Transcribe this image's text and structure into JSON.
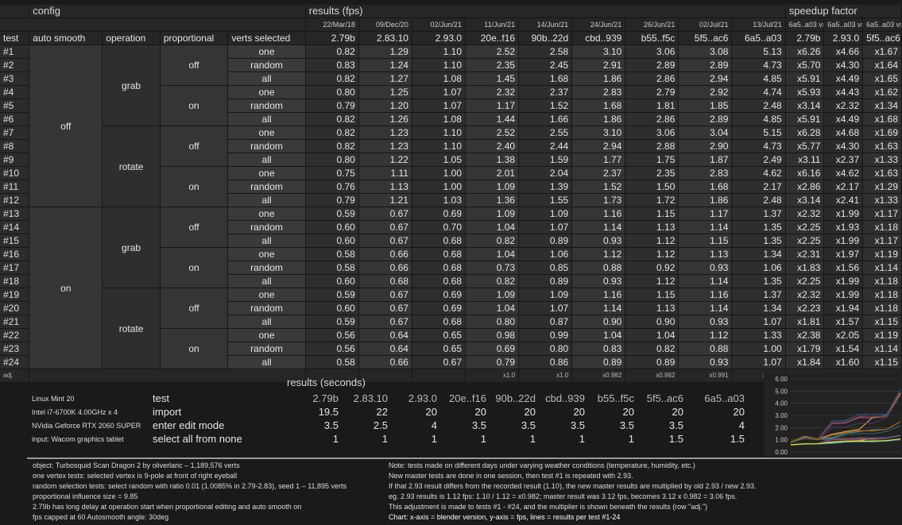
{
  "headers": {
    "config": "config",
    "results_fps": "results (fps)",
    "speedup_factor": "speedup factor",
    "col_test": "test",
    "col_auto_smooth": "auto smooth",
    "col_operation": "operation",
    "col_proportional": "proportional",
    "col_verts_selected": "verts selected",
    "dates": [
      "22/Mar/18",
      "09/Dec/20",
      "02/Jun/21",
      "11/Jun/21",
      "14/Jun/21",
      "24/Jun/21",
      "26/Jun/21",
      "02/Jul/21",
      "13/Jul/21"
    ],
    "versions": [
      "2.79b",
      "2.83.10",
      "2.93.0",
      "20e..f16",
      "90b..22d",
      "cbd..939",
      "b55..f5c",
      "5f5..ac6",
      "6a5..a03"
    ],
    "speedup_top": [
      "6a5..a03 vs",
      "6a5..a03 vs",
      "6a5..a03 vs"
    ],
    "speedup_versions": [
      "2.79b",
      "2.93.0",
      "5f5..ac6"
    ]
  },
  "groups": {
    "auto_smooth": [
      "off",
      "on"
    ],
    "operation": [
      "grab",
      "rotate",
      "grab",
      "rotate"
    ],
    "proportional": [
      "off",
      "on",
      "off",
      "on",
      "off",
      "on",
      "off",
      "on"
    ]
  },
  "rows": [
    {
      "id": "#1",
      "verts": "one",
      "fps": [
        "0.82",
        "1.29",
        "1.10",
        "2.52",
        "2.58",
        "3.10",
        "3.06",
        "3.08",
        "5.13"
      ],
      "spd": [
        "x6.26",
        "x4.66",
        "x1.67"
      ]
    },
    {
      "id": "#2",
      "verts": "random",
      "fps": [
        "0.83",
        "1.24",
        "1.10",
        "2.35",
        "2.45",
        "2.91",
        "2.89",
        "2.89",
        "4.73"
      ],
      "spd": [
        "x5.70",
        "x4.30",
        "x1.64"
      ]
    },
    {
      "id": "#3",
      "verts": "all",
      "fps": [
        "0.82",
        "1.27",
        "1.08",
        "1.45",
        "1.68",
        "1.86",
        "2.86",
        "2.94",
        "4.85"
      ],
      "spd": [
        "x5.91",
        "x4.49",
        "x1.65"
      ]
    },
    {
      "id": "#4",
      "verts": "one",
      "fps": [
        "0.80",
        "1.25",
        "1.07",
        "2.32",
        "2.37",
        "2.83",
        "2.79",
        "2.92",
        "4.74"
      ],
      "spd": [
        "x5.93",
        "x4.43",
        "x1.62"
      ]
    },
    {
      "id": "#5",
      "verts": "random",
      "fps": [
        "0.79",
        "1.20",
        "1.07",
        "1.17",
        "1.52",
        "1.68",
        "1.81",
        "1.85",
        "2.48"
      ],
      "spd": [
        "x3.14",
        "x2.32",
        "x1.34"
      ]
    },
    {
      "id": "#6",
      "verts": "all",
      "fps": [
        "0.82",
        "1.26",
        "1.08",
        "1.44",
        "1.66",
        "1.86",
        "2.86",
        "2.89",
        "4.85"
      ],
      "spd": [
        "x5.91",
        "x4.49",
        "x1.68"
      ]
    },
    {
      "id": "#7",
      "verts": "one",
      "fps": [
        "0.82",
        "1.23",
        "1.10",
        "2.52",
        "2.55",
        "3.10",
        "3.06",
        "3.04",
        "5.15"
      ],
      "spd": [
        "x6.28",
        "x4.68",
        "x1.69"
      ]
    },
    {
      "id": "#8",
      "verts": "random",
      "fps": [
        "0.82",
        "1.23",
        "1.10",
        "2.40",
        "2.44",
        "2.94",
        "2.88",
        "2.90",
        "4.73"
      ],
      "spd": [
        "x5.77",
        "x4.30",
        "x1.63"
      ]
    },
    {
      "id": "#9",
      "verts": "all",
      "fps": [
        "0.80",
        "1.22",
        "1.05",
        "1.38",
        "1.59",
        "1.77",
        "1.75",
        "1.87",
        "2.49"
      ],
      "spd": [
        "x3.11",
        "x2.37",
        "x1.33"
      ]
    },
    {
      "id": "#10",
      "verts": "one",
      "fps": [
        "0.75",
        "1.11",
        "1.00",
        "2.01",
        "2.04",
        "2.37",
        "2.35",
        "2.83",
        "4.62"
      ],
      "spd": [
        "x6.16",
        "x4.62",
        "x1.63"
      ]
    },
    {
      "id": "#11",
      "verts": "random",
      "fps": [
        "0.76",
        "1.13",
        "1.00",
        "1.09",
        "1.39",
        "1.52",
        "1.50",
        "1.68",
        "2.17"
      ],
      "spd": [
        "x2.86",
        "x2.17",
        "x1.29"
      ]
    },
    {
      "id": "#12",
      "verts": "all",
      "fps": [
        "0.79",
        "1.21",
        "1.03",
        "1.36",
        "1.55",
        "1.73",
        "1.72",
        "1.86",
        "2.48"
      ],
      "spd": [
        "x3.14",
        "x2.41",
        "x1.33"
      ]
    },
    {
      "id": "#13",
      "verts": "one",
      "fps": [
        "0.59",
        "0.67",
        "0.69",
        "1.09",
        "1.09",
        "1.16",
        "1.15",
        "1.17",
        "1.37"
      ],
      "spd": [
        "x2.32",
        "x1.99",
        "x1.17"
      ]
    },
    {
      "id": "#14",
      "verts": "random",
      "fps": [
        "0.60",
        "0.67",
        "0.70",
        "1.04",
        "1.07",
        "1.14",
        "1.13",
        "1.14",
        "1.35"
      ],
      "spd": [
        "x2.25",
        "x1.93",
        "x1.18"
      ]
    },
    {
      "id": "#15",
      "verts": "all",
      "fps": [
        "0.60",
        "0.67",
        "0.68",
        "0.82",
        "0.89",
        "0.93",
        "1.12",
        "1.15",
        "1.35"
      ],
      "spd": [
        "x2.25",
        "x1.99",
        "x1.17"
      ]
    },
    {
      "id": "#16",
      "verts": "one",
      "fps": [
        "0.58",
        "0.66",
        "0.68",
        "1.04",
        "1.06",
        "1.12",
        "1.12",
        "1.13",
        "1.34"
      ],
      "spd": [
        "x2.31",
        "x1.97",
        "x1.19"
      ]
    },
    {
      "id": "#17",
      "verts": "random",
      "fps": [
        "0.58",
        "0.66",
        "0.68",
        "0.73",
        "0.85",
        "0.88",
        "0.92",
        "0.93",
        "1.06"
      ],
      "spd": [
        "x1.83",
        "x1.56",
        "x1.14"
      ]
    },
    {
      "id": "#18",
      "verts": "all",
      "fps": [
        "0.60",
        "0.68",
        "0.68",
        "0.82",
        "0.89",
        "0.93",
        "1.12",
        "1.14",
        "1.35"
      ],
      "spd": [
        "x2.25",
        "x1.99",
        "x1.18"
      ]
    },
    {
      "id": "#19",
      "verts": "one",
      "fps": [
        "0.59",
        "0.67",
        "0.69",
        "1.09",
        "1.09",
        "1.16",
        "1.15",
        "1.16",
        "1.37"
      ],
      "spd": [
        "x2.32",
        "x1.99",
        "x1.18"
      ]
    },
    {
      "id": "#20",
      "verts": "random",
      "fps": [
        "0.60",
        "0.67",
        "0.69",
        "1.04",
        "1.07",
        "1.14",
        "1.13",
        "1.14",
        "1.34"
      ],
      "spd": [
        "x2.23",
        "x1.94",
        "x1.18"
      ]
    },
    {
      "id": "#21",
      "verts": "all",
      "fps": [
        "0.59",
        "0.67",
        "0.68",
        "0.80",
        "0.87",
        "0.90",
        "0.90",
        "0.93",
        "1.07"
      ],
      "spd": [
        "x1.81",
        "x1.57",
        "x1.15"
      ]
    },
    {
      "id": "#22",
      "verts": "one",
      "fps": [
        "0.56",
        "0.64",
        "0.65",
        "0.98",
        "0.99",
        "1.04",
        "1.04",
        "1.12",
        "1.33"
      ],
      "spd": [
        "x2.38",
        "x2.05",
        "x1.19"
      ]
    },
    {
      "id": "#23",
      "verts": "random",
      "fps": [
        "0.56",
        "0.64",
        "0.65",
        "0.69",
        "0.80",
        "0.83",
        "0.82",
        "0.88",
        "1.00"
      ],
      "spd": [
        "x1.79",
        "x1.54",
        "x1.14"
      ]
    },
    {
      "id": "#24",
      "verts": "all",
      "fps": [
        "0.58",
        "0.66",
        "0.67",
        "0.79",
        "0.86",
        "0.89",
        "0.89",
        "0.93",
        "1.07"
      ],
      "spd": [
        "x1.84",
        "x1.60",
        "x1.15"
      ]
    }
  ],
  "adj": {
    "label": "adj.",
    "values": [
      "",
      "",
      "",
      "x1.0",
      "x1.0",
      "x0.982",
      "x0.982",
      "x0.991",
      "x0.991"
    ]
  },
  "seconds": {
    "title": "results (seconds)",
    "header_label": "test",
    "rows": [
      {
        "label": "import",
        "values": [
          "19.5",
          "22",
          "20",
          "20",
          "20",
          "20",
          "20",
          "20",
          "20"
        ]
      },
      {
        "label": "enter edit mode",
        "values": [
          "3.5",
          "2.5",
          "4",
          "3.5",
          "3.5",
          "3.5",
          "3.5",
          "3.5",
          "4"
        ]
      },
      {
        "label": "select all from none",
        "values": [
          "1",
          "1",
          "1",
          "1",
          "1",
          "1",
          "1",
          "1.5",
          "1.5"
        ]
      }
    ]
  },
  "system": [
    "Linux Mint 20",
    "Intel i7-6700K 4.00GHz x 4",
    "NVidia Geforce RTX 2060 SUPER",
    "input: Wacom graphics tablet"
  ],
  "notes_left": [
    "object: Turbosquid Scan Dragon 2 by oliverlaric – 1,189,576 verts",
    "one vertex tests: selected vertex is 9-pole at front of right eyeball",
    "random selection tests: select random with ratio 0.01 (1.0085% in 2.79-2.83), seed 1 – 11,895 verts",
    "proportional influence size = 9.85",
    "2.79b has long delay at operation start when proportional editing and auto smooth on",
    "fps capped at 60     Autosmooth angle: 30deg"
  ],
  "notes_right": [
    "Note: tests made on different days under varying weather conditions (temperature, humidity, etc.)",
    "New master tests are done in one session, then test #1 is repeated with 2.93.",
    "If that 2.93 result differs from the recorded result (1.10), the new master results are multiplied by old 2.93 / new 2.93.",
    "eg. 2.93 results is 1.12 fps: 1.10 / 1.12 = x0.982; master result was 3.12 fps, becomes 3.12 x 0.982 = 3.06 fps.",
    "This adjustment is made to tests #1 - #24, and the multiplier is shown beneath the results (row \"adj.\")",
    "Chart: x-axis = blender version, y-axis = fps, lines = results per test #1-24"
  ],
  "chart_data": {
    "type": "line",
    "x": [
      "2.79b",
      "2.83.10",
      "2.93.0",
      "20e..f16",
      "90b..22d",
      "cbd..939",
      "b55..f5c",
      "5f5..ac6",
      "6a5..a03"
    ],
    "ylim": [
      0,
      6
    ],
    "yticks": [
      "0.00",
      "1.00",
      "2.00",
      "3.00",
      "4.00",
      "5.00",
      "6.00"
    ],
    "grid": true,
    "series_source": "rows[].fps (tests #1-#24)",
    "colors": [
      "#4f81bd",
      "#c0504d",
      "#9bbb59",
      "#8064a2",
      "#4bacc6",
      "#f79646",
      "#2c4d75",
      "#772c2a",
      "#5f7530",
      "#4d3b62",
      "#276a7c",
      "#b65708",
      "#729aca",
      "#cd7371",
      "#afc97a",
      "#9983b5",
      "#6fbdd1",
      "#f9ab6b",
      "#3a679c",
      "#9f3b38",
      "#7e9c40",
      "#664f83",
      "#358ea6",
      "#f3f01a"
    ]
  },
  "colors": {
    "background": "#1a1a1a",
    "cell_dark": "#2e2e2e",
    "cell_mid": "#353535",
    "text": "#e6e6e6"
  }
}
